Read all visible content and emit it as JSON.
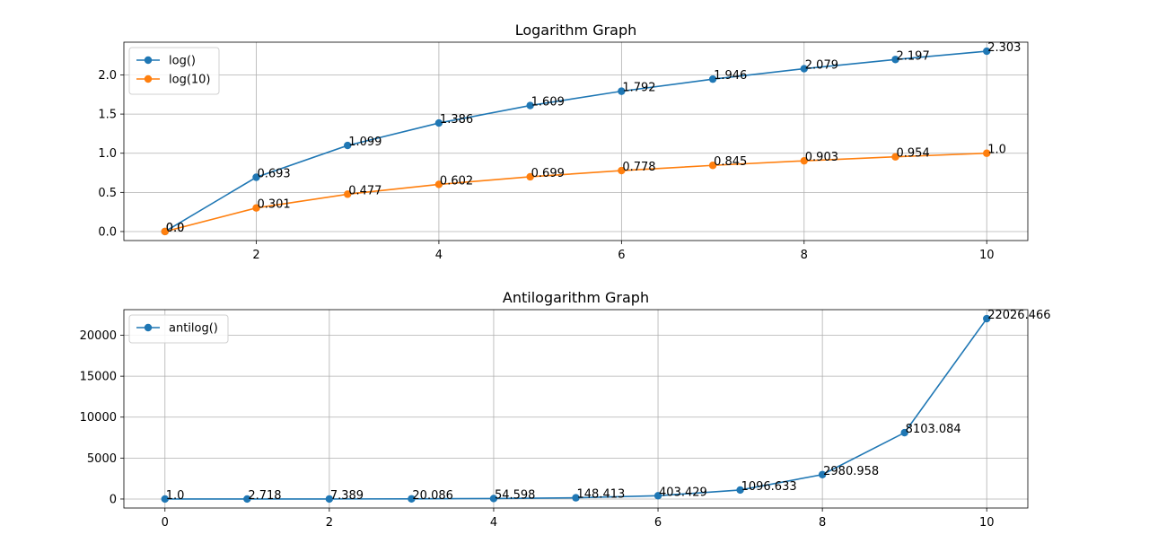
{
  "chart_data": [
    {
      "type": "line",
      "title": "Logarithm Graph",
      "xlabel": "",
      "ylabel": "",
      "x": [
        1,
        2,
        3,
        4,
        5,
        6,
        7,
        8,
        9,
        10
      ],
      "xlim": [
        0.55,
        10.45
      ],
      "ylim": [
        -0.115,
        2.418
      ],
      "xticks": [
        2,
        4,
        6,
        8,
        10
      ],
      "yticks": [
        0.0,
        0.5,
        1.0,
        1.5,
        2.0
      ],
      "ytick_labels": [
        "0.0",
        "0.5",
        "1.0",
        "1.5",
        "2.0"
      ],
      "grid": true,
      "legend": "top-left",
      "series": [
        {
          "name": "log()",
          "color": "#1f77b4",
          "values": [
            0.0,
            0.693,
            1.099,
            1.386,
            1.609,
            1.792,
            1.946,
            2.079,
            2.197,
            2.303
          ],
          "labels": [
            "0.0",
            "0.693",
            "1.099",
            "1.386",
            "1.609",
            "1.792",
            "1.946",
            "2.079",
            "2.197",
            "2.303"
          ]
        },
        {
          "name": "log(10)",
          "color": "#ff7f0e",
          "values": [
            0.0,
            0.301,
            0.477,
            0.602,
            0.699,
            0.778,
            0.845,
            0.903,
            0.954,
            1.0
          ],
          "labels": [
            "0.0",
            "0.301",
            "0.477",
            "0.602",
            "0.699",
            "0.778",
            "0.845",
            "0.903",
            "0.954",
            "1.0"
          ]
        }
      ]
    },
    {
      "type": "line",
      "title": "Antilogarithm Graph",
      "xlabel": "",
      "ylabel": "",
      "x": [
        0,
        1,
        2,
        3,
        4,
        5,
        6,
        7,
        8,
        9,
        10
      ],
      "xlim": [
        -0.5,
        10.5
      ],
      "ylim": [
        -1100,
        23126
      ],
      "xticks": [
        0,
        2,
        4,
        6,
        8,
        10
      ],
      "yticks": [
        0,
        5000,
        10000,
        15000,
        20000
      ],
      "ytick_labels": [
        "0",
        "5000",
        "10000",
        "15000",
        "20000"
      ],
      "grid": true,
      "legend": "top-left",
      "series": [
        {
          "name": "antilog()",
          "color": "#1f77b4",
          "values": [
            1.0,
            2.718,
            7.389,
            20.086,
            54.598,
            148.413,
            403.429,
            1096.633,
            2980.958,
            8103.084,
            22026.466
          ],
          "labels": [
            "1.0",
            "2.718",
            "7.389",
            "20.086",
            "54.598",
            "148.413",
            "403.429",
            "1096.633",
            "2980.958",
            "8103.084",
            "22026.466"
          ]
        }
      ]
    }
  ]
}
